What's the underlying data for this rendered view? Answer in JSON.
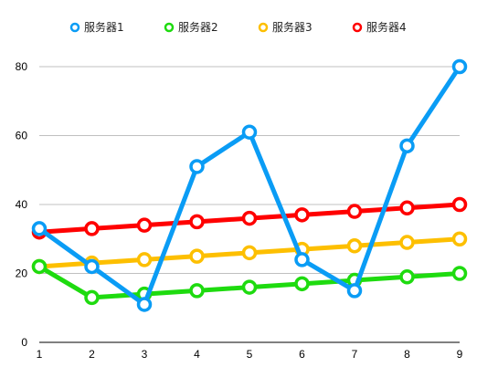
{
  "chart_data": {
    "type": "line",
    "title": "",
    "xlabel": "",
    "ylabel": "",
    "x": [
      1,
      2,
      3,
      4,
      5,
      6,
      7,
      8,
      9
    ],
    "ylim": [
      0,
      80
    ],
    "yticks": [
      0,
      20,
      40,
      60,
      80
    ],
    "grid": true,
    "legend_position": "top",
    "series": [
      {
        "name": "服务器1",
        "color": "#0a9cf5",
        "values": [
          33,
          22,
          11,
          51,
          61,
          24,
          15,
          57,
          80
        ]
      },
      {
        "name": "服务器2",
        "color": "#1edb0f",
        "values": [
          22,
          13,
          14,
          15,
          16,
          17,
          18,
          19,
          20
        ]
      },
      {
        "name": "服务器3",
        "color": "#fdbf00",
        "values": [
          22,
          23,
          24,
          25,
          26,
          27,
          28,
          29,
          30
        ]
      },
      {
        "name": "服务器4",
        "color": "#ff0000",
        "values": [
          32,
          33,
          34,
          35,
          36,
          37,
          38,
          39,
          40
        ]
      }
    ]
  }
}
